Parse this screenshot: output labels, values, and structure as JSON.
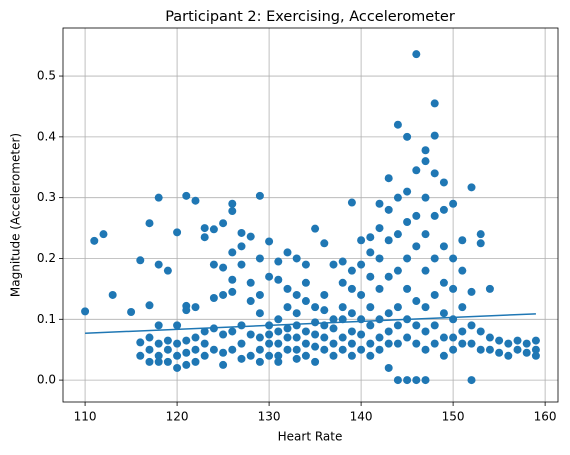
{
  "chart_data": {
    "type": "scatter",
    "title": "Participant 2: Exercising, Accelerometer",
    "x_label": "Heart Rate",
    "y_label": "Magnitude (Accelerometer)",
    "color": "#1f77b4",
    "grid": true,
    "xlim": [
      107.6,
      161.4
    ],
    "ylim": [
      -0.036,
      0.579
    ],
    "xticks": [
      110,
      120,
      130,
      140,
      150,
      160
    ],
    "yticks": [
      {
        "value": 0,
        "label": "0.0"
      },
      0.1,
      0.2,
      0.3,
      0.4,
      0.5
    ],
    "x": [
      110,
      111,
      112,
      113,
      115,
      116,
      116,
      116,
      117,
      117,
      117,
      117,
      117,
      118,
      118,
      118,
      118,
      118,
      118,
      119,
      119,
      119,
      119,
      120,
      120,
      120,
      120,
      120,
      121,
      121,
      121,
      121,
      121,
      121,
      122,
      122,
      122,
      122,
      122,
      123,
      123,
      123,
      123,
      123,
      124,
      124,
      124,
      124,
      124,
      125,
      125,
      125,
      125,
      125,
      125,
      126,
      126,
      126,
      126,
      126,
      126,
      126,
      127,
      127,
      127,
      127,
      127,
      127,
      128,
      128,
      128,
      128,
      128,
      129,
      129,
      129,
      129,
      129,
      129,
      129,
      130,
      130,
      130,
      130,
      130,
      130,
      131,
      131,
      131,
      131,
      131,
      131,
      131,
      132,
      132,
      132,
      132,
      132,
      132,
      133,
      133,
      133,
      133,
      133,
      133,
      133,
      134,
      134,
      134,
      134,
      134,
      134,
      135,
      135,
      135,
      135,
      135,
      135,
      136,
      136,
      136,
      136,
      136,
      136,
      137,
      137,
      137,
      137,
      137,
      138,
      138,
      138,
      138,
      138,
      138,
      139,
      139,
      139,
      139,
      139,
      139,
      139,
      140,
      140,
      140,
      140,
      140,
      140,
      141,
      141,
      141,
      141,
      141,
      141,
      141,
      142,
      142,
      142,
      142,
      142,
      142,
      142,
      143,
      143,
      143,
      143,
      143,
      143,
      143,
      143,
      144,
      144,
      144,
      144,
      144,
      144,
      144,
      144,
      145,
      145,
      145,
      145,
      145,
      145,
      145,
      145,
      146,
      146,
      146,
      146,
      146,
      146,
      146,
      146,
      147,
      147,
      147,
      147,
      147,
      147,
      147,
      147,
      147,
      148,
      148,
      148,
      148,
      148,
      148,
      148,
      148,
      149,
      149,
      149,
      149,
      149,
      149,
      149,
      150,
      150,
      150,
      150,
      150,
      150,
      151,
      151,
      151,
      151,
      151,
      152,
      152,
      152,
      152,
      152,
      153,
      153,
      153,
      153,
      154,
      154,
      154,
      155,
      155,
      156,
      156,
      157,
      157,
      158,
      158,
      159,
      159,
      159
    ],
    "values": [
      0.113,
      0.229,
      0.24,
      0.14,
      0.112,
      0.197,
      0.062,
      0.04,
      0.258,
      0.123,
      0.07,
      0.05,
      0.03,
      0.3,
      0.19,
      0.09,
      0.06,
      0.04,
      0.03,
      0.18,
      0.065,
      0.05,
      0.03,
      0.243,
      0.09,
      0.06,
      0.04,
      0.02,
      0.303,
      0.122,
      0.115,
      0.065,
      0.045,
      0.025,
      0.295,
      0.12,
      0.07,
      0.05,
      0.03,
      0.25,
      0.235,
      0.08,
      0.06,
      0.04,
      0.248,
      0.19,
      0.135,
      0.085,
      0.05,
      0.258,
      0.185,
      0.14,
      0.075,
      0.045,
      0.025,
      0.29,
      0.278,
      0.21,
      0.165,
      0.145,
      0.08,
      0.05,
      0.242,
      0.22,
      0.19,
      0.09,
      0.06,
      0.035,
      0.236,
      0.16,
      0.13,
      0.075,
      0.04,
      0.303,
      0.2,
      0.14,
      0.11,
      0.07,
      0.05,
      0.03,
      0.228,
      0.17,
      0.09,
      0.075,
      0.06,
      0.04,
      0.195,
      0.165,
      0.1,
      0.08,
      0.06,
      0.04,
      0.03,
      0.21,
      0.15,
      0.12,
      0.085,
      0.07,
      0.05,
      0.2,
      0.14,
      0.11,
      0.09,
      0.07,
      0.05,
      0.035,
      0.19,
      0.16,
      0.13,
      0.08,
      0.06,
      0.04,
      0.249,
      0.12,
      0.095,
      0.075,
      0.055,
      0.03,
      0.225,
      0.14,
      0.115,
      0.09,
      0.07,
      0.05,
      0.19,
      0.1,
      0.085,
      0.06,
      0.04,
      0.195,
      0.16,
      0.12,
      0.1,
      0.07,
      0.05,
      0.292,
      0.18,
      0.15,
      0.11,
      0.08,
      0.06,
      0.04,
      0.23,
      0.19,
      0.14,
      0.1,
      0.075,
      0.05,
      0.235,
      0.21,
      0.17,
      0.12,
      0.09,
      0.06,
      0.04,
      0.29,
      0.25,
      0.2,
      0.15,
      0.1,
      0.07,
      0.05,
      0.332,
      0.28,
      0.23,
      0.17,
      0.11,
      0.08,
      0.06,
      0.02,
      0.42,
      0.3,
      0.24,
      0.18,
      0.12,
      0.09,
      0.06,
      0.0,
      0.4,
      0.31,
      0.26,
      0.2,
      0.15,
      0.1,
      0.07,
      0.0,
      0.536,
      0.345,
      0.27,
      0.22,
      0.13,
      0.09,
      0.06,
      0.0,
      0.378,
      0.36,
      0.3,
      0.24,
      0.18,
      0.12,
      0.08,
      0.05,
      0.0,
      0.455,
      0.402,
      0.34,
      0.27,
      0.2,
      0.14,
      0.09,
      0.06,
      0.325,
      0.28,
      0.22,
      0.16,
      0.11,
      0.07,
      0.04,
      0.29,
      0.2,
      0.15,
      0.1,
      0.07,
      0.05,
      0.23,
      0.18,
      0.12,
      0.08,
      0.06,
      0.317,
      0.145,
      0.09,
      0.06,
      0.0,
      0.24,
      0.225,
      0.08,
      0.05,
      0.15,
      0.07,
      0.05,
      0.065,
      0.045,
      0.06,
      0.04,
      0.065,
      0.05,
      0.06,
      0.045,
      0.065,
      0.05,
      0.04
    ],
    "trend_line": {
      "x": [
        110,
        159
      ],
      "values": [
        0.077,
        0.109
      ]
    }
  }
}
